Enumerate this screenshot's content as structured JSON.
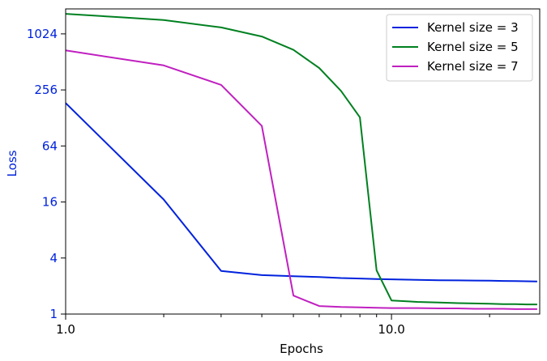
{
  "chart_data": {
    "type": "line",
    "title": "",
    "xlabel": "Epochs",
    "ylabel": "Loss",
    "ylabel_color": "#0022dd",
    "ytick_color": "#0022dd",
    "xscale": "log",
    "yscale": "log2",
    "xlim": [
      1.0,
      28.5
    ],
    "ylim": [
      1,
      1900
    ],
    "xticks": [
      {
        "value": 1.0,
        "label": "1.0"
      },
      {
        "value": 10.0,
        "label": "10.0"
      }
    ],
    "yticks": [
      {
        "value": 1,
        "label": "1"
      },
      {
        "value": 4,
        "label": "4"
      },
      {
        "value": 16,
        "label": "16"
      },
      {
        "value": 64,
        "label": "64"
      },
      {
        "value": 256,
        "label": "256"
      },
      {
        "value": 1024,
        "label": "1024"
      }
    ],
    "grid": false,
    "legend_position": "top-right",
    "series": [
      {
        "name": "Kernel size = 3",
        "color": "#0022dd",
        "x": [
          1,
          2,
          3,
          4,
          5,
          6,
          7,
          8,
          9,
          10,
          12,
          14,
          16,
          18,
          20,
          22,
          24,
          26,
          28
        ],
        "y": [
          185,
          17,
          2.9,
          2.62,
          2.55,
          2.5,
          2.44,
          2.41,
          2.38,
          2.36,
          2.33,
          2.31,
          2.3,
          2.29,
          2.28,
          2.27,
          2.26,
          2.25,
          2.24
        ]
      },
      {
        "name": "Kernel size = 5",
        "color": "#008020",
        "x": [
          1,
          1.5,
          2,
          3,
          4,
          5,
          6,
          7,
          8,
          9,
          10,
          12,
          14,
          16,
          18,
          20,
          22,
          24,
          26,
          28
        ],
        "y": [
          1680,
          1540,
          1440,
          1200,
          960,
          690,
          440,
          250,
          130,
          2.95,
          1.4,
          1.35,
          1.33,
          1.31,
          1.3,
          1.29,
          1.28,
          1.28,
          1.27,
          1.27
        ]
      },
      {
        "name": "Kernel size = 7",
        "color": "#c020c0",
        "x": [
          1,
          2,
          3,
          4,
          5,
          6,
          7,
          8,
          9,
          10,
          12,
          14,
          16,
          18,
          20,
          22,
          24,
          26,
          28
        ],
        "y": [
          680,
          470,
          290,
          105,
          1.58,
          1.22,
          1.19,
          1.18,
          1.17,
          1.16,
          1.16,
          1.15,
          1.15,
          1.14,
          1.14,
          1.14,
          1.13,
          1.13,
          1.13
        ]
      }
    ]
  }
}
